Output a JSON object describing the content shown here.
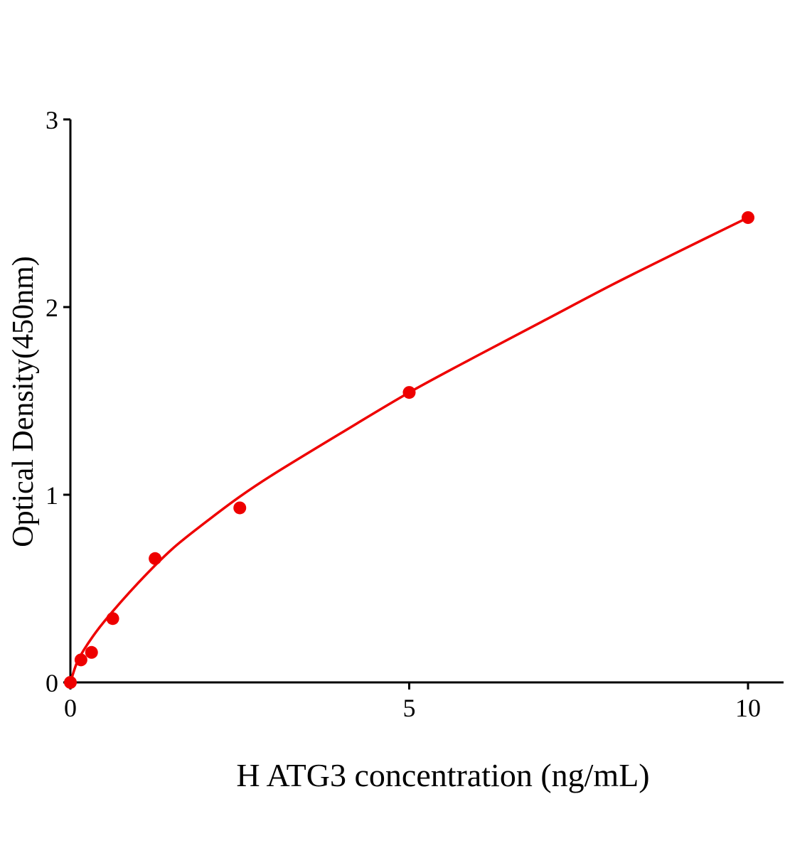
{
  "chart_data": {
    "type": "scatter",
    "title": "",
    "xlabel": "H ATG3 concentration (ng/mL)",
    "ylabel": "Optical Density(450nm)",
    "xlim": [
      0,
      10.5
    ],
    "ylim": [
      0,
      3
    ],
    "xticks": [
      "0",
      "5",
      "10"
    ],
    "yticks": [
      "0",
      "1",
      "2",
      "3"
    ],
    "grid": false,
    "color": "#ee0000",
    "points": {
      "x": [
        0,
        0.156,
        0.312,
        0.625,
        1.25,
        2.5,
        5,
        10
      ],
      "y": [
        0,
        0.12,
        0.16,
        0.34,
        0.66,
        0.93,
        1.545,
        2.477
      ]
    },
    "fit_curve": {
      "x": [
        0,
        0.1,
        0.25,
        0.5,
        1,
        1.5,
        2,
        2.5,
        3,
        4,
        5,
        6,
        7,
        8,
        9,
        10
      ],
      "y": [
        0,
        0.108,
        0.202,
        0.325,
        0.53,
        0.71,
        0.855,
        0.99,
        1.11,
        1.33,
        1.545,
        1.74,
        1.93,
        2.12,
        2.3,
        2.477
      ]
    }
  }
}
